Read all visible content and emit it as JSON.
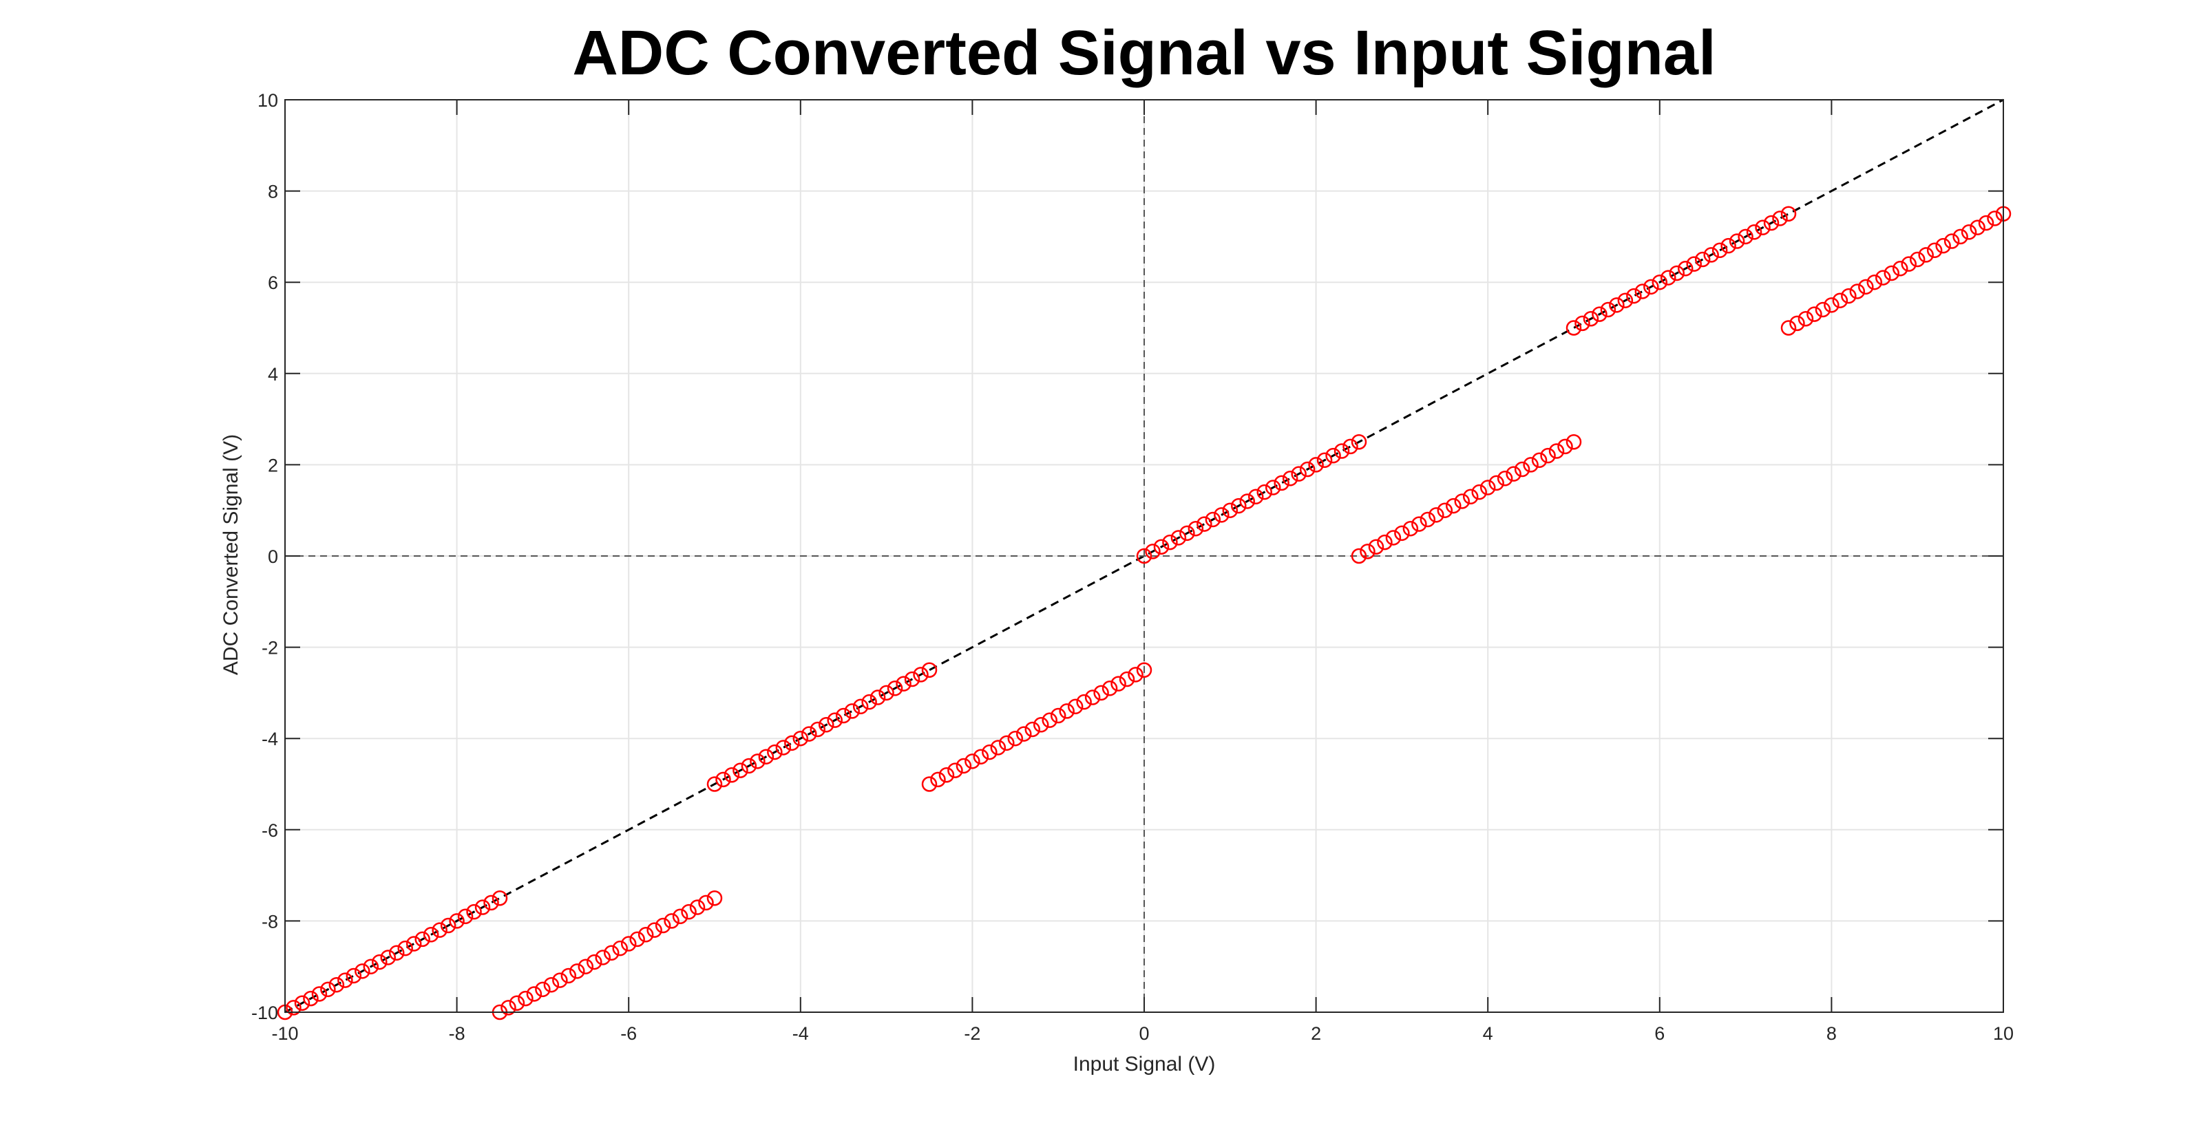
{
  "chart_data": {
    "type": "scatter",
    "title": "ADC Converted Signal vs Input Signal",
    "xlabel": "Input Signal (V)",
    "ylabel": "ADC Converted Signal (V)",
    "xlim": [
      -10,
      10
    ],
    "ylim": [
      -10,
      10
    ],
    "xticks": [
      -10,
      -8,
      -6,
      -4,
      -2,
      0,
      2,
      4,
      6,
      8,
      10
    ],
    "yticks": [
      -10,
      -8,
      -6,
      -4,
      -2,
      0,
      2,
      4,
      6,
      8,
      10
    ],
    "grid": true,
    "marker": "open-circle",
    "colors": {
      "marker": "#ff0000",
      "reference": "#000000",
      "zero_axes": "#555555",
      "grid": "#e5e5e5",
      "axes": "#262626"
    },
    "reference_lines": [
      {
        "style": "dashed",
        "x": [
          -10,
          10
        ],
        "y": [
          -10,
          10
        ]
      },
      {
        "style": "dashed",
        "x": [
          -10,
          10
        ],
        "y": [
          0,
          0
        ]
      },
      {
        "style": "dashed",
        "x": [
          0,
          0
        ],
        "y": [
          -10,
          10
        ]
      }
    ],
    "series": [
      {
        "marker": "o",
        "color": "#ff0000",
        "points": [
          [
            -10.0,
            -10.0
          ],
          [
            -9.8,
            -9.8
          ],
          [
            -9.6,
            -9.6
          ],
          [
            -9.4,
            -9.4
          ],
          [
            -9.2,
            -9.2
          ],
          [
            -9.0,
            -9.0
          ],
          [
            -8.8,
            -8.8
          ],
          [
            -8.6,
            -8.6
          ],
          [
            -8.4,
            -8.4
          ],
          [
            -8.2,
            -8.2
          ],
          [
            -8.0,
            -8.0
          ],
          [
            -7.8,
            -7.8
          ],
          [
            -7.6,
            -7.6
          ],
          [
            -7.5,
            -10.0
          ],
          [
            -7.3,
            -9.8
          ],
          [
            -7.1,
            -9.6
          ],
          [
            -6.9,
            -9.4
          ],
          [
            -6.7,
            -9.2
          ],
          [
            -6.5,
            -9.0
          ],
          [
            -6.3,
            -8.8
          ],
          [
            -6.1,
            -8.6
          ],
          [
            -5.9,
            -8.4
          ],
          [
            -5.7,
            -8.2
          ],
          [
            -5.5,
            -8.0
          ],
          [
            -5.3,
            -7.8
          ],
          [
            -5.1,
            -7.6
          ],
          [
            -5.0,
            -5.0
          ],
          [
            -4.8,
            -4.8
          ],
          [
            -4.6,
            -4.6
          ],
          [
            -4.4,
            -4.4
          ],
          [
            -4.2,
            -4.2
          ],
          [
            -4.0,
            -4.0
          ],
          [
            -3.8,
            -3.8
          ],
          [
            -3.6,
            -3.6
          ],
          [
            -3.4,
            -3.4
          ],
          [
            -3.2,
            -3.2
          ],
          [
            -3.0,
            -3.0
          ],
          [
            -2.8,
            -2.8
          ],
          [
            -2.6,
            -2.6
          ],
          [
            -2.5,
            -5.0
          ],
          [
            -2.3,
            -4.8
          ],
          [
            -2.1,
            -4.6
          ],
          [
            -1.9,
            -4.4
          ],
          [
            -1.7,
            -4.2
          ],
          [
            -1.5,
            -4.0
          ],
          [
            -1.3,
            -3.8
          ],
          [
            -1.1,
            -3.6
          ],
          [
            -0.9,
            -3.4
          ],
          [
            -0.7,
            -3.2
          ],
          [
            -0.5,
            -3.0
          ],
          [
            -0.3,
            -2.8
          ],
          [
            -0.1,
            -2.6
          ],
          [
            0.0,
            0.0
          ],
          [
            0.2,
            0.2
          ],
          [
            0.4,
            0.4
          ],
          [
            0.6,
            0.6
          ],
          [
            0.8,
            0.8
          ],
          [
            1.0,
            1.0
          ],
          [
            1.2,
            1.2
          ],
          [
            1.4,
            1.4
          ],
          [
            1.6,
            1.6
          ],
          [
            1.8,
            1.8
          ],
          [
            2.0,
            2.0
          ],
          [
            2.2,
            2.2
          ],
          [
            2.4,
            2.4
          ],
          [
            2.5,
            0.0
          ],
          [
            2.7,
            0.2
          ],
          [
            2.9,
            0.4
          ],
          [
            3.1,
            0.6
          ],
          [
            3.3,
            0.8
          ],
          [
            3.5,
            1.0
          ],
          [
            3.7,
            1.2
          ],
          [
            3.9,
            1.4
          ],
          [
            4.1,
            1.6
          ],
          [
            4.3,
            1.8
          ],
          [
            4.5,
            2.0
          ],
          [
            4.7,
            2.2
          ],
          [
            4.9,
            2.4
          ],
          [
            5.0,
            5.0
          ],
          [
            5.2,
            5.2
          ],
          [
            5.4,
            5.4
          ],
          [
            5.6,
            5.6
          ],
          [
            5.8,
            5.8
          ],
          [
            6.0,
            6.0
          ],
          [
            6.2,
            6.2
          ],
          [
            6.4,
            6.4
          ],
          [
            6.6,
            6.6
          ],
          [
            6.8,
            6.8
          ],
          [
            7.0,
            7.0
          ],
          [
            7.2,
            7.2
          ],
          [
            7.4,
            7.4
          ],
          [
            7.5,
            5.0
          ],
          [
            7.7,
            5.2
          ],
          [
            7.9,
            5.4
          ],
          [
            8.1,
            5.6
          ],
          [
            8.3,
            5.8
          ],
          [
            8.5,
            6.0
          ],
          [
            8.7,
            6.2
          ],
          [
            8.9,
            6.4
          ],
          [
            9.1,
            6.6
          ],
          [
            9.3,
            6.8
          ],
          [
            9.5,
            7.0
          ],
          [
            9.7,
            7.2
          ],
          [
            9.9,
            7.4
          ]
        ]
      }
    ]
  },
  "ui": {
    "title": "ADC Converted Signal vs Input Signal",
    "xlabel": "Input Signal (V)",
    "ylabel": "ADC Converted Signal (V)"
  }
}
